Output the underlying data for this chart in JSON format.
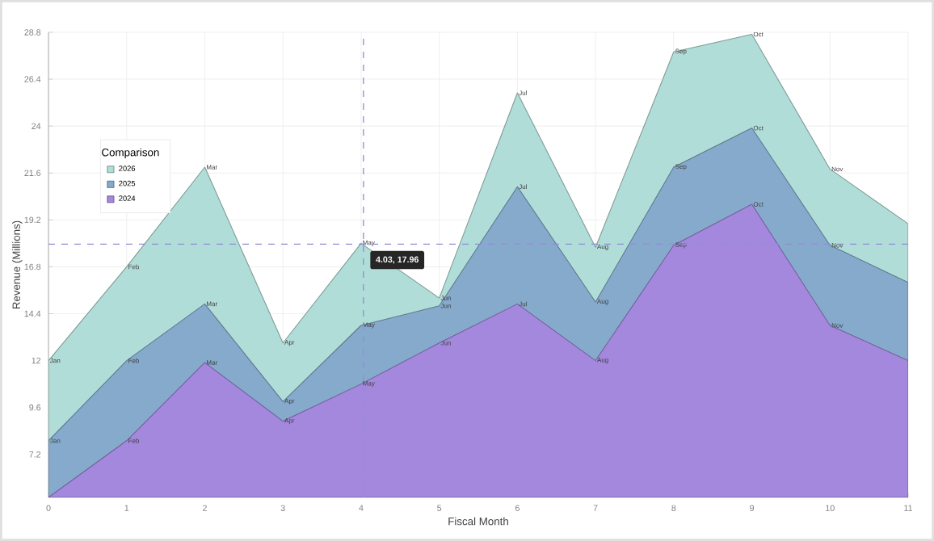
{
  "chart_data": {
    "type": "area",
    "xlabel": "Fiscal Month",
    "ylabel": "Revenue (Millions)",
    "legend_title": "Comparison",
    "x": [
      0,
      1,
      2,
      3,
      4,
      5,
      6,
      7,
      8,
      9,
      10,
      11
    ],
    "xlim": [
      0,
      11
    ],
    "xticks": [
      0,
      1,
      2,
      3,
      4,
      5,
      6,
      7,
      8,
      9,
      10,
      11
    ],
    "ylim": [
      5,
      28.8
    ],
    "yticks": [
      7.2,
      9.6,
      12,
      14.4,
      16.8,
      19.2,
      21.6,
      24,
      26.4,
      28.8
    ],
    "grid": true,
    "legend": "left",
    "series": [
      {
        "name": "2026",
        "color": "#b1ddd8",
        "values": [
          12.0,
          16.8,
          21.9,
          12.9,
          18.0,
          15.2,
          25.7,
          17.8,
          27.8,
          28.7,
          21.8,
          19.0
        ],
        "value_labels": [
          "Jan",
          "Feb",
          "Mar",
          "Apr",
          "May",
          "Jun",
          "Jul",
          "Aug",
          "Sep",
          "Oct",
          "Nov",
          null
        ]
      },
      {
        "name": "2025",
        "color": "#86aacc",
        "values": [
          7.9,
          12.0,
          14.9,
          9.9,
          13.8,
          14.8,
          20.9,
          15.0,
          21.9,
          23.9,
          17.9,
          16.0
        ],
        "value_labels": [
          "Jan",
          "Feb",
          "Mar",
          "Apr",
          "May",
          "Jun",
          "Jul",
          "Aug",
          "Sep",
          "Oct",
          "Nov",
          null
        ]
      },
      {
        "name": "2024",
        "color": "#a388dd",
        "values": [
          5.0,
          7.9,
          11.9,
          8.9,
          10.8,
          12.9,
          14.9,
          12.0,
          17.9,
          20.0,
          13.8,
          12.0
        ],
        "value_labels": [
          null,
          "Feb",
          "Mar",
          "Apr",
          "May",
          "Jun",
          "Jul",
          "Aug",
          "Sep",
          "Oct",
          "Nov",
          null
        ]
      }
    ],
    "ref_lines": [
      {
        "axis": "x",
        "value": 4.03,
        "color": "#8f8fd6",
        "line_style": "dashed"
      },
      {
        "axis": "y",
        "value": 17.96,
        "color": "#8f8fd6",
        "line_style": "dashed"
      }
    ],
    "annotations": [
      {
        "text": "4.03, 17.96",
        "x": 4.03,
        "y": 17.96
      }
    ]
  }
}
